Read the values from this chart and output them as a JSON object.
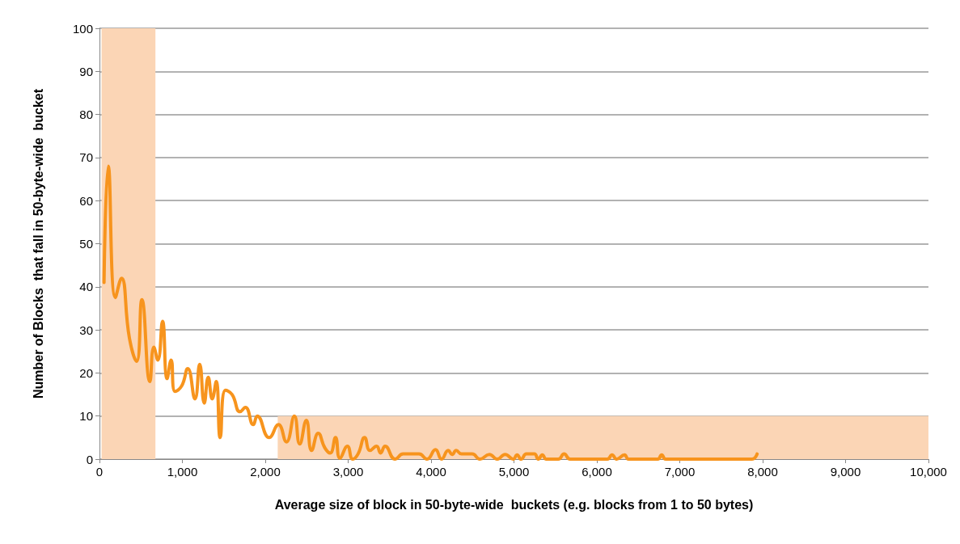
{
  "chart_data": {
    "type": "line",
    "xlabel": "Average size of block in 50-byte-wide  buckets (e.g. blocks from 1 to 50 bytes)",
    "ylabel": "Number of Blocks  that fall in 50-byte-wide  bucket",
    "xlim": [
      0,
      10000
    ],
    "xticks": [
      0,
      {
        "value": 1000,
        "label": "1,000"
      },
      {
        "value": 2000,
        "label": "2,000"
      },
      {
        "value": 3000,
        "label": "3,000"
      },
      {
        "value": 4000,
        "label": "4,000"
      },
      {
        "value": 5000,
        "label": "5,000"
      },
      {
        "value": 6000,
        "label": "6,000"
      },
      {
        "value": 7000,
        "label": "7,000"
      },
      {
        "value": 8000,
        "label": "8,000"
      },
      {
        "value": 9000,
        "label": "9,000"
      },
      {
        "value": 10000,
        "label": "10,000"
      }
    ],
    "ylim": [
      0,
      100
    ],
    "yticks": [
      0,
      10,
      20,
      30,
      40,
      50,
      60,
      70,
      80,
      90,
      100
    ],
    "grid": "y",
    "marker": "none",
    "line_style": "solid",
    "bands": [
      {
        "axis": "x",
        "from": 25,
        "to": 675,
        "color": "#fbd5b5"
      }
    ],
    "series": [
      {
        "type": "area",
        "color": "#fbd5b5",
        "x": [
          2150,
          10000
        ],
        "values": [
          10,
          10
        ]
      },
      {
        "color": "#f7941d",
        "x": [
          55,
          106,
          192,
          265,
          362,
          448,
          512,
          608,
          656,
          704,
          761,
          816,
          864,
          912,
          992,
          1065,
          1152,
          1209,
          1264,
          1312,
          1360,
          1408,
          1456,
          1520,
          1600,
          1696,
          1760,
          1855,
          1903,
          2047,
          2159,
          2255,
          2351,
          2415,
          2495,
          2559,
          2639,
          2719,
          2783,
          2847,
          2901,
          2991,
          3055,
          3119,
          3199,
          3263,
          3343,
          3391,
          3445,
          3567,
          3663,
          3855,
          3951,
          4053,
          4127,
          4207,
          4255,
          4303,
          4367,
          4495,
          4590,
          4703,
          4798,
          4894,
          4990,
          5038,
          5086,
          5150,
          5246,
          5294,
          5342,
          5390,
          5534,
          5605,
          5678,
          6126,
          6183,
          6238,
          6334,
          6382,
          6734,
          6782,
          6830,
          7869,
          7933
        ],
        "values": [
          41,
          68,
          37.5,
          42,
          28,
          22.7,
          37,
          18,
          26,
          23,
          32,
          18.7,
          23,
          15.7,
          17,
          21,
          14,
          22,
          13,
          19,
          14,
          18,
          5,
          16,
          15,
          11,
          12,
          8,
          10,
          5,
          8,
          4,
          10,
          3.5,
          9,
          2,
          6,
          2.6,
          1.4,
          5,
          0.2,
          3,
          0,
          1.2,
          5,
          2,
          3,
          1.4,
          3,
          0,
          1.2,
          1.2,
          0,
          2.2,
          0,
          2,
          1.1,
          2,
          1.2,
          1.2,
          0,
          1.1,
          0,
          1.1,
          0,
          1,
          0,
          1.2,
          1.2,
          0,
          1,
          0,
          0,
          1.2,
          0,
          0,
          1,
          0,
          1,
          0,
          0,
          1,
          0,
          0,
          1.2
        ]
      }
    ]
  }
}
